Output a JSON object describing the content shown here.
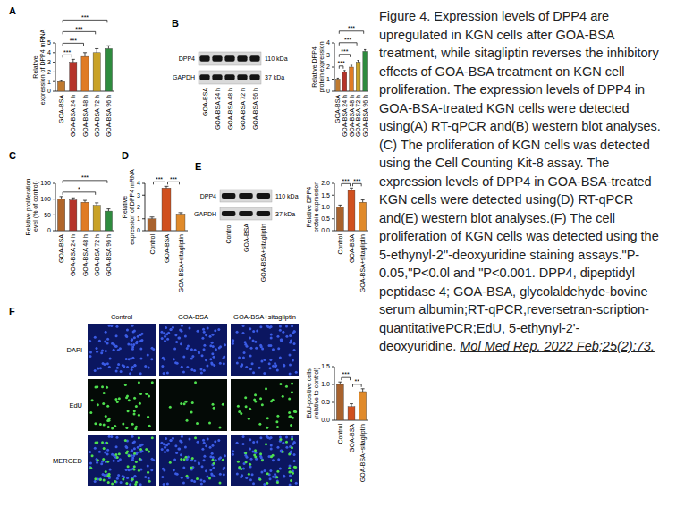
{
  "chart_data": [
    {
      "panel": "A",
      "type": "bar",
      "y_label": "Relative expression of DPP4 mRNA",
      "categories": [
        "GOA-BSA",
        "GOA-BSA 24 h",
        "GOA-BSA 48 h",
        "GOA-BSA 72 h",
        "GOA-BSA 96 h"
      ],
      "values": [
        1.0,
        3.0,
        3.6,
        4.0,
        4.4
      ],
      "errors": [
        0.1,
        0.3,
        0.4,
        0.4,
        0.3
      ],
      "colors": [
        "#c07a2e",
        "#b5332a",
        "#e07b24",
        "#c9a227",
        "#2e8b3e"
      ],
      "ylim": [
        0,
        5
      ],
      "yticks": [
        0,
        1,
        2,
        3,
        4,
        5
      ],
      "annotations": [
        {
          "between": [
            "GOA-BSA",
            "GOA-BSA 24 h"
          ],
          "label": "***"
        },
        {
          "between": [
            "GOA-BSA",
            "GOA-BSA 48 h"
          ],
          "label": "***"
        },
        {
          "between": [
            "GOA-BSA",
            "GOA-BSA 72 h"
          ],
          "label": "***"
        },
        {
          "between": [
            "GOA-BSA",
            "GOA-BSA 96 h"
          ],
          "label": "***"
        }
      ]
    },
    {
      "panel": "B",
      "type": "bar",
      "y_label": "Relative DPP4 protein expression",
      "categories": [
        "GOA-BSA",
        "GOA-BSA 24 h",
        "GOA-BSA 48 h",
        "GOA-BSA 72 h",
        "GOA-BSA 96 h"
      ],
      "values": [
        1.0,
        1.6,
        2.0,
        2.4,
        3.3
      ],
      "errors": [
        0.08,
        0.12,
        0.15,
        0.15,
        0.15
      ],
      "colors": [
        "#c07a2e",
        "#b5332a",
        "#e07b24",
        "#c9a227",
        "#2e8b3e"
      ],
      "ylim": [
        0,
        4
      ],
      "yticks": [
        0,
        1,
        2,
        3,
        4
      ],
      "annotations": [
        {
          "between": [
            "GOA-BSA",
            "GOA-BSA 24 h"
          ],
          "label": "***"
        },
        {
          "between": [
            "GOA-BSA",
            "GOA-BSA 48 h"
          ],
          "label": "***"
        },
        {
          "between": [
            "GOA-BSA",
            "GOA-BSA 72 h"
          ],
          "label": "***"
        },
        {
          "between": [
            "GOA-BSA",
            "GOA-BSA 96 h"
          ],
          "label": "***"
        }
      ]
    },
    {
      "panel": "C",
      "type": "bar",
      "y_label": "Relative proliferation level (% of control)",
      "categories": [
        "GOA-BSA",
        "GOA-BSA 24 h",
        "GOA-BSA 48 h",
        "GOA-BSA 72 h",
        "GOA-BSA 96 h"
      ],
      "values": [
        100,
        97,
        90,
        80,
        62
      ],
      "errors": [
        8,
        7,
        6,
        8,
        7
      ],
      "colors": [
        "#b0652a",
        "#b5332a",
        "#e07b24",
        "#c9a227",
        "#2e8b3e"
      ],
      "ylim": [
        0,
        150
      ],
      "yticks": [
        0,
        50,
        100,
        150
      ],
      "annotations": [
        {
          "between": [
            "GOA-BSA",
            "GOA-BSA 72 h"
          ],
          "label": "*"
        },
        {
          "between": [
            "GOA-BSA",
            "GOA-BSA 96 h"
          ],
          "label": "***"
        }
      ]
    },
    {
      "panel": "D",
      "type": "bar",
      "y_label": "Relative expression of DPP4 mRNA",
      "categories": [
        "Control",
        "GOA-BSA",
        "GOA-BSA+sitagliptin"
      ],
      "values": [
        1.0,
        3.6,
        1.4
      ],
      "errors": [
        0.15,
        0.15,
        0.12
      ],
      "colors": [
        "#a8622d",
        "#d0501f",
        "#e08a2a"
      ],
      "ylim": [
        0,
        4
      ],
      "yticks": [
        0,
        1,
        2,
        3,
        4
      ],
      "annotations": [
        {
          "between": [
            "Control",
            "GOA-BSA"
          ],
          "label": "***"
        },
        {
          "between": [
            "GOA-BSA",
            "GOA-BSA+sitagliptin"
          ],
          "label": "***"
        }
      ]
    },
    {
      "panel": "E",
      "type": "bar",
      "y_label": "Relative DPP4 protein expression",
      "categories": [
        "Control",
        "GOA-BSA",
        "GOA-BSA+sitagliptin"
      ],
      "values": [
        1.0,
        1.7,
        1.2
      ],
      "errors": [
        0.08,
        0.1,
        0.1
      ],
      "colors": [
        "#a8622d",
        "#d0501f",
        "#e08a2a"
      ],
      "ylim": [
        0,
        2
      ],
      "yticks": [
        {
          "value": 0,
          "label": "0.0"
        },
        {
          "value": 0.5,
          "label": "0.5"
        },
        {
          "value": 1,
          "label": "1.0"
        },
        {
          "value": 1.5,
          "label": "1.5"
        },
        {
          "value": 2,
          "label": "2.0"
        }
      ],
      "annotations": [
        {
          "between": [
            "Control",
            "GOA-BSA"
          ],
          "label": "***"
        },
        {
          "between": [
            "GOA-BSA",
            "GOA-BSA+sitagliptin"
          ],
          "label": "***"
        }
      ]
    },
    {
      "panel": "F",
      "type": "bar",
      "y_label": "EdU-positive cells (relative to control)",
      "categories": [
        "Control",
        "GOA-BSA",
        "GOA-BSA+sitagliptin"
      ],
      "values": [
        1.0,
        0.38,
        0.8
      ],
      "errors": [
        0.07,
        0.08,
        0.08
      ],
      "colors": [
        "#a8622d",
        "#d0501f",
        "#e08a2a"
      ],
      "ylim": [
        0,
        1.5
      ],
      "yticks": [
        {
          "value": 0,
          "label": "0.0"
        },
        {
          "value": 0.5,
          "label": "0.5"
        },
        {
          "value": 1,
          "label": "1.0"
        },
        {
          "value": 1.5,
          "label": "1.5"
        }
      ],
      "annotations": [
        {
          "between": [
            "Control",
            "GOA-BSA"
          ],
          "label": "***"
        },
        {
          "between": [
            "GOA-BSA",
            "GOA-BSA+sitagliptin"
          ],
          "label": "**"
        }
      ]
    }
  ],
  "blots": [
    {
      "bands": [
        "DPP4",
        "GAPDH"
      ],
      "sizes": [
        "110 kDa",
        "37 kDa"
      ],
      "lanes": [
        "GOA-BSA",
        "GOA-BSA 24 h",
        "GOA-BSA 48 h",
        "GOA-BSA 72 h",
        "GOA-BSA 96 h"
      ]
    },
    {
      "bands": [
        "DPP4",
        "GAPDH"
      ],
      "sizes": [
        "110 kDa",
        "37 kDa"
      ],
      "lanes": [
        "Control",
        "GOA-BSA",
        "GOA-BSA+sitagliptin"
      ]
    }
  ],
  "imaging": {
    "columns": [
      "Control",
      "GOA-BSA",
      "GOA-BSA+sitagliptin"
    ],
    "rows": [
      "DAPI",
      "EdU",
      "MERGED"
    ]
  },
  "caption": {
    "text": "Figure 4. Expression levels of DPP4 are upregulated in KGN cells after GOA-BSA treatment, while sitagliptin reverses the inhibitory effects of GOA-BSA treatment on KGN cell proliferation. The expression levels of DPP4 in GOA-BSA-treated KGN cells were detected using(A) RT-qPCR and(B) western blot analyses.(C) The proliferation of KGN cells was detected using the Cell Counting Kit-8 assay. The expression levels of DPP4 in GOA-BSA-treated KGN cells were detected using(D) RT-qPCR and(E) western blot analyses.(F) The cell proliferation of KGN cells was detected using the 5-ethynyl-2''-deoxyuridine staining assays.\"P-0.05,\"P<0.0l and \"P<0.001. DPP4, dipeptidyl peptidase 4; GOA-BSA, glycolaldehyde-bovine serum albumin;RT-qPCR,reversetran-scription-quantitativePCR;EdU, 5-ethynyl-2'-deoxyuridine.",
    "citation": "Mol Med Rep. 2022 Feb;25(2):73."
  }
}
